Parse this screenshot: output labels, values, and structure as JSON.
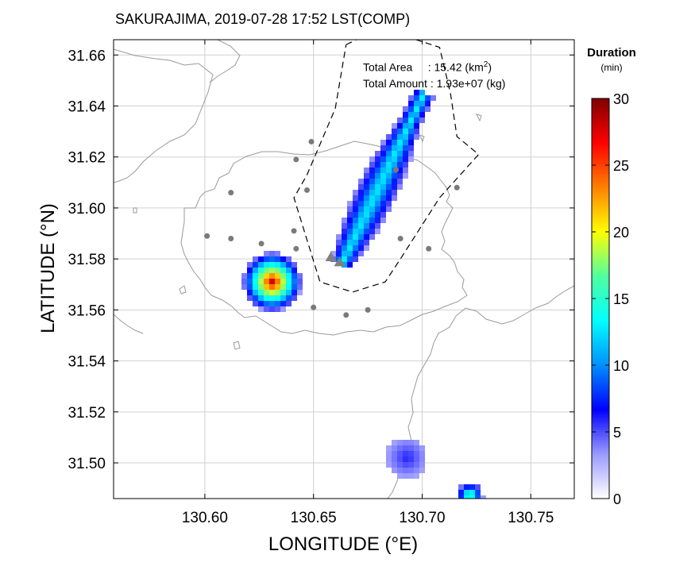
{
  "chart_data": {
    "type": "heatmap",
    "title": "SAKURAJIMA, 2019-07-28 17:52 LST(COMP)",
    "xlabel": "LONGITUDE (°E)",
    "ylabel": "LATITUDE (°N)",
    "xlim": [
      130.558,
      130.77
    ],
    "ylim": [
      31.486,
      31.666
    ],
    "xticks": [
      "130.60",
      "130.65",
      "130.70",
      "130.75"
    ],
    "xtick_values": [
      130.6,
      130.65,
      130.7,
      130.75
    ],
    "yticks": [
      "31.50",
      "31.52",
      "31.54",
      "31.56",
      "31.58",
      "31.60",
      "31.62",
      "31.64",
      "31.66"
    ],
    "ytick_values": [
      31.5,
      31.52,
      31.54,
      31.56,
      31.58,
      31.6,
      31.62,
      31.64,
      31.66
    ],
    "grid": true,
    "colorbar": {
      "title": "Duration",
      "unit": "(min)",
      "min": 0,
      "max": 30,
      "ticks": [
        "0",
        "5",
        "10",
        "15",
        "20",
        "25",
        "30"
      ],
      "colors": [
        "#ffffff",
        "#9a9aff",
        "#0000ff",
        "#0090ff",
        "#00ffff",
        "#50ff9f",
        "#ffff00",
        "#ff8000",
        "#ff0000",
        "#7f0000"
      ]
    },
    "annotations": {
      "area_label": "Total Area     : 15.42 (km",
      "area_sup": "2",
      "area_end": ")",
      "amount": "Total Amount : 1.93e+07 (kg)"
    },
    "stations": [
      [
        130.612,
        31.606
      ],
      [
        130.642,
        31.619
      ],
      [
        130.649,
        31.626
      ],
      [
        130.647,
        31.607
      ],
      [
        130.601,
        31.589
      ],
      [
        130.612,
        31.588
      ],
      [
        130.626,
        31.586
      ],
      [
        130.641,
        31.591
      ],
      [
        130.642,
        31.584
      ],
      [
        130.65,
        31.561
      ],
      [
        130.665,
        31.558
      ],
      [
        130.675,
        31.56
      ],
      [
        130.69,
        31.588
      ],
      [
        130.703,
        31.584
      ],
      [
        130.716,
        31.608
      ],
      [
        130.688,
        31.615
      ]
    ],
    "vents": [
      [
        130.658,
        31.581
      ],
      [
        130.662,
        31.579
      ]
    ],
    "plume_outline": [
      [
        130.665,
        31.664
      ],
      [
        130.672,
        31.667
      ],
      [
        130.69,
        31.668
      ],
      [
        130.708,
        31.663
      ],
      [
        130.713,
        31.645
      ],
      [
        130.716,
        31.628
      ],
      [
        130.726,
        31.621
      ],
      [
        130.708,
        31.604
      ],
      [
        130.69,
        31.58
      ],
      [
        130.683,
        31.571
      ],
      [
        130.668,
        31.567
      ],
      [
        130.653,
        31.571
      ],
      [
        130.641,
        31.604
      ],
      [
        130.647,
        31.613
      ],
      [
        130.66,
        31.639
      ],
      [
        130.665,
        31.664
      ]
    ],
    "deposit_series": [
      {
        "axis_start": [
          130.663,
          31.578
        ],
        "axis_end": [
          130.701,
          31.645
        ],
        "half_width_km": 0.9,
        "duration_max": 13,
        "duration_edge": 3
      },
      {
        "center": [
          130.631,
          31.571
        ],
        "radius_km": 1.3,
        "duration_max": 28,
        "duration_edge": 3
      },
      {
        "center": [
          130.693,
          31.502
        ],
        "radius_km": 0.9,
        "duration_max": 6,
        "duration_edge": 3
      },
      {
        "center": [
          130.722,
          31.487
        ],
        "radius_km": 0.6,
        "duration_max": 17,
        "duration_edge": 3
      }
    ]
  }
}
